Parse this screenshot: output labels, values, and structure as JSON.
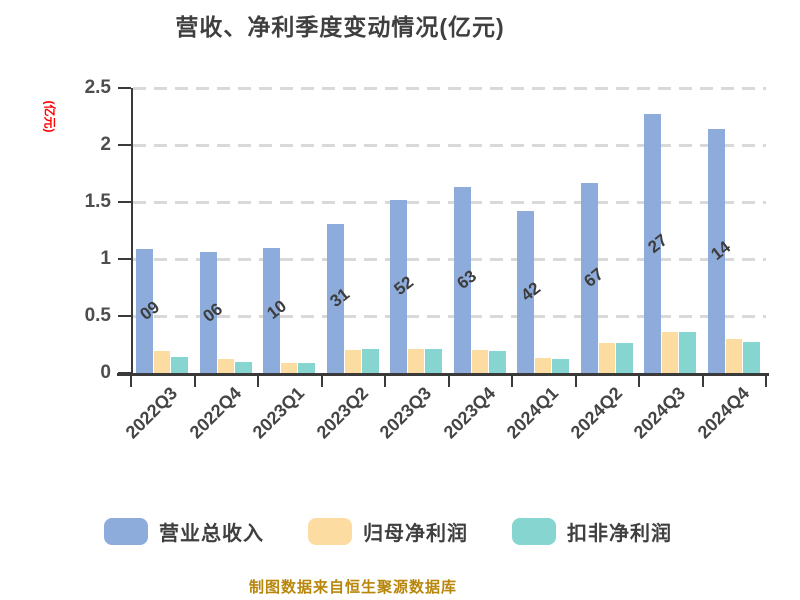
{
  "title": "营收、净利季度变动情况(亿元)",
  "y_axis": {
    "unit_label": "(亿元)",
    "tick_labels": [
      "2.5",
      "2",
      "1.5",
      "1",
      "0.5",
      "0"
    ],
    "max": 2.5,
    "min": 0
  },
  "footer": {
    "source_text": "制图数据来自恒生聚源数据库"
  },
  "colors": {
    "revenue_bar": "#8eacdb",
    "net_profit_bar": "#fddca2",
    "deducted_profit_bar": "#86d5d1",
    "title_text": "#3f3f3f",
    "axis_line": "#3a3a3a",
    "gridline": "#d9d9d9",
    "unit_label": "#ff0000",
    "source_text": "#b8860b"
  },
  "chart_data": {
    "type": "bar",
    "title": "营收、净利季度变动情况(亿元)",
    "categories": [
      "2022Q3",
      "2022Q4",
      "2023Q1",
      "2023Q2",
      "2023Q3",
      "2023Q4",
      "2024Q1",
      "2024Q2",
      "2024Q3",
      "2024Q4"
    ],
    "series": [
      {
        "name": "营业总收入",
        "color": "#8eacdb",
        "values": [
          1.09,
          1.06,
          1.1,
          1.31,
          1.52,
          1.63,
          1.42,
          1.67,
          2.27,
          2.14
        ],
        "visible_label_fragments": [
          "09",
          "06",
          "10",
          "31",
          "52",
          "63",
          "42",
          "67",
          "27",
          "14"
        ]
      },
      {
        "name": "归母净利润",
        "color": "#fddca2",
        "values": [
          0.19,
          0.12,
          0.09,
          0.2,
          0.21,
          0.2,
          0.13,
          0.26,
          0.36,
          0.3
        ]
      },
      {
        "name": "扣非净利润",
        "color": "#86d5d1",
        "values": [
          0.14,
          0.1,
          0.09,
          0.21,
          0.21,
          0.19,
          0.12,
          0.26,
          0.36,
          0.27
        ]
      }
    ],
    "ylabel": "(亿元)",
    "ylim": [
      0,
      2.5
    ],
    "y_tick_step": 0.5,
    "grid": "horizontal-dashed",
    "legend_position": "bottom"
  }
}
